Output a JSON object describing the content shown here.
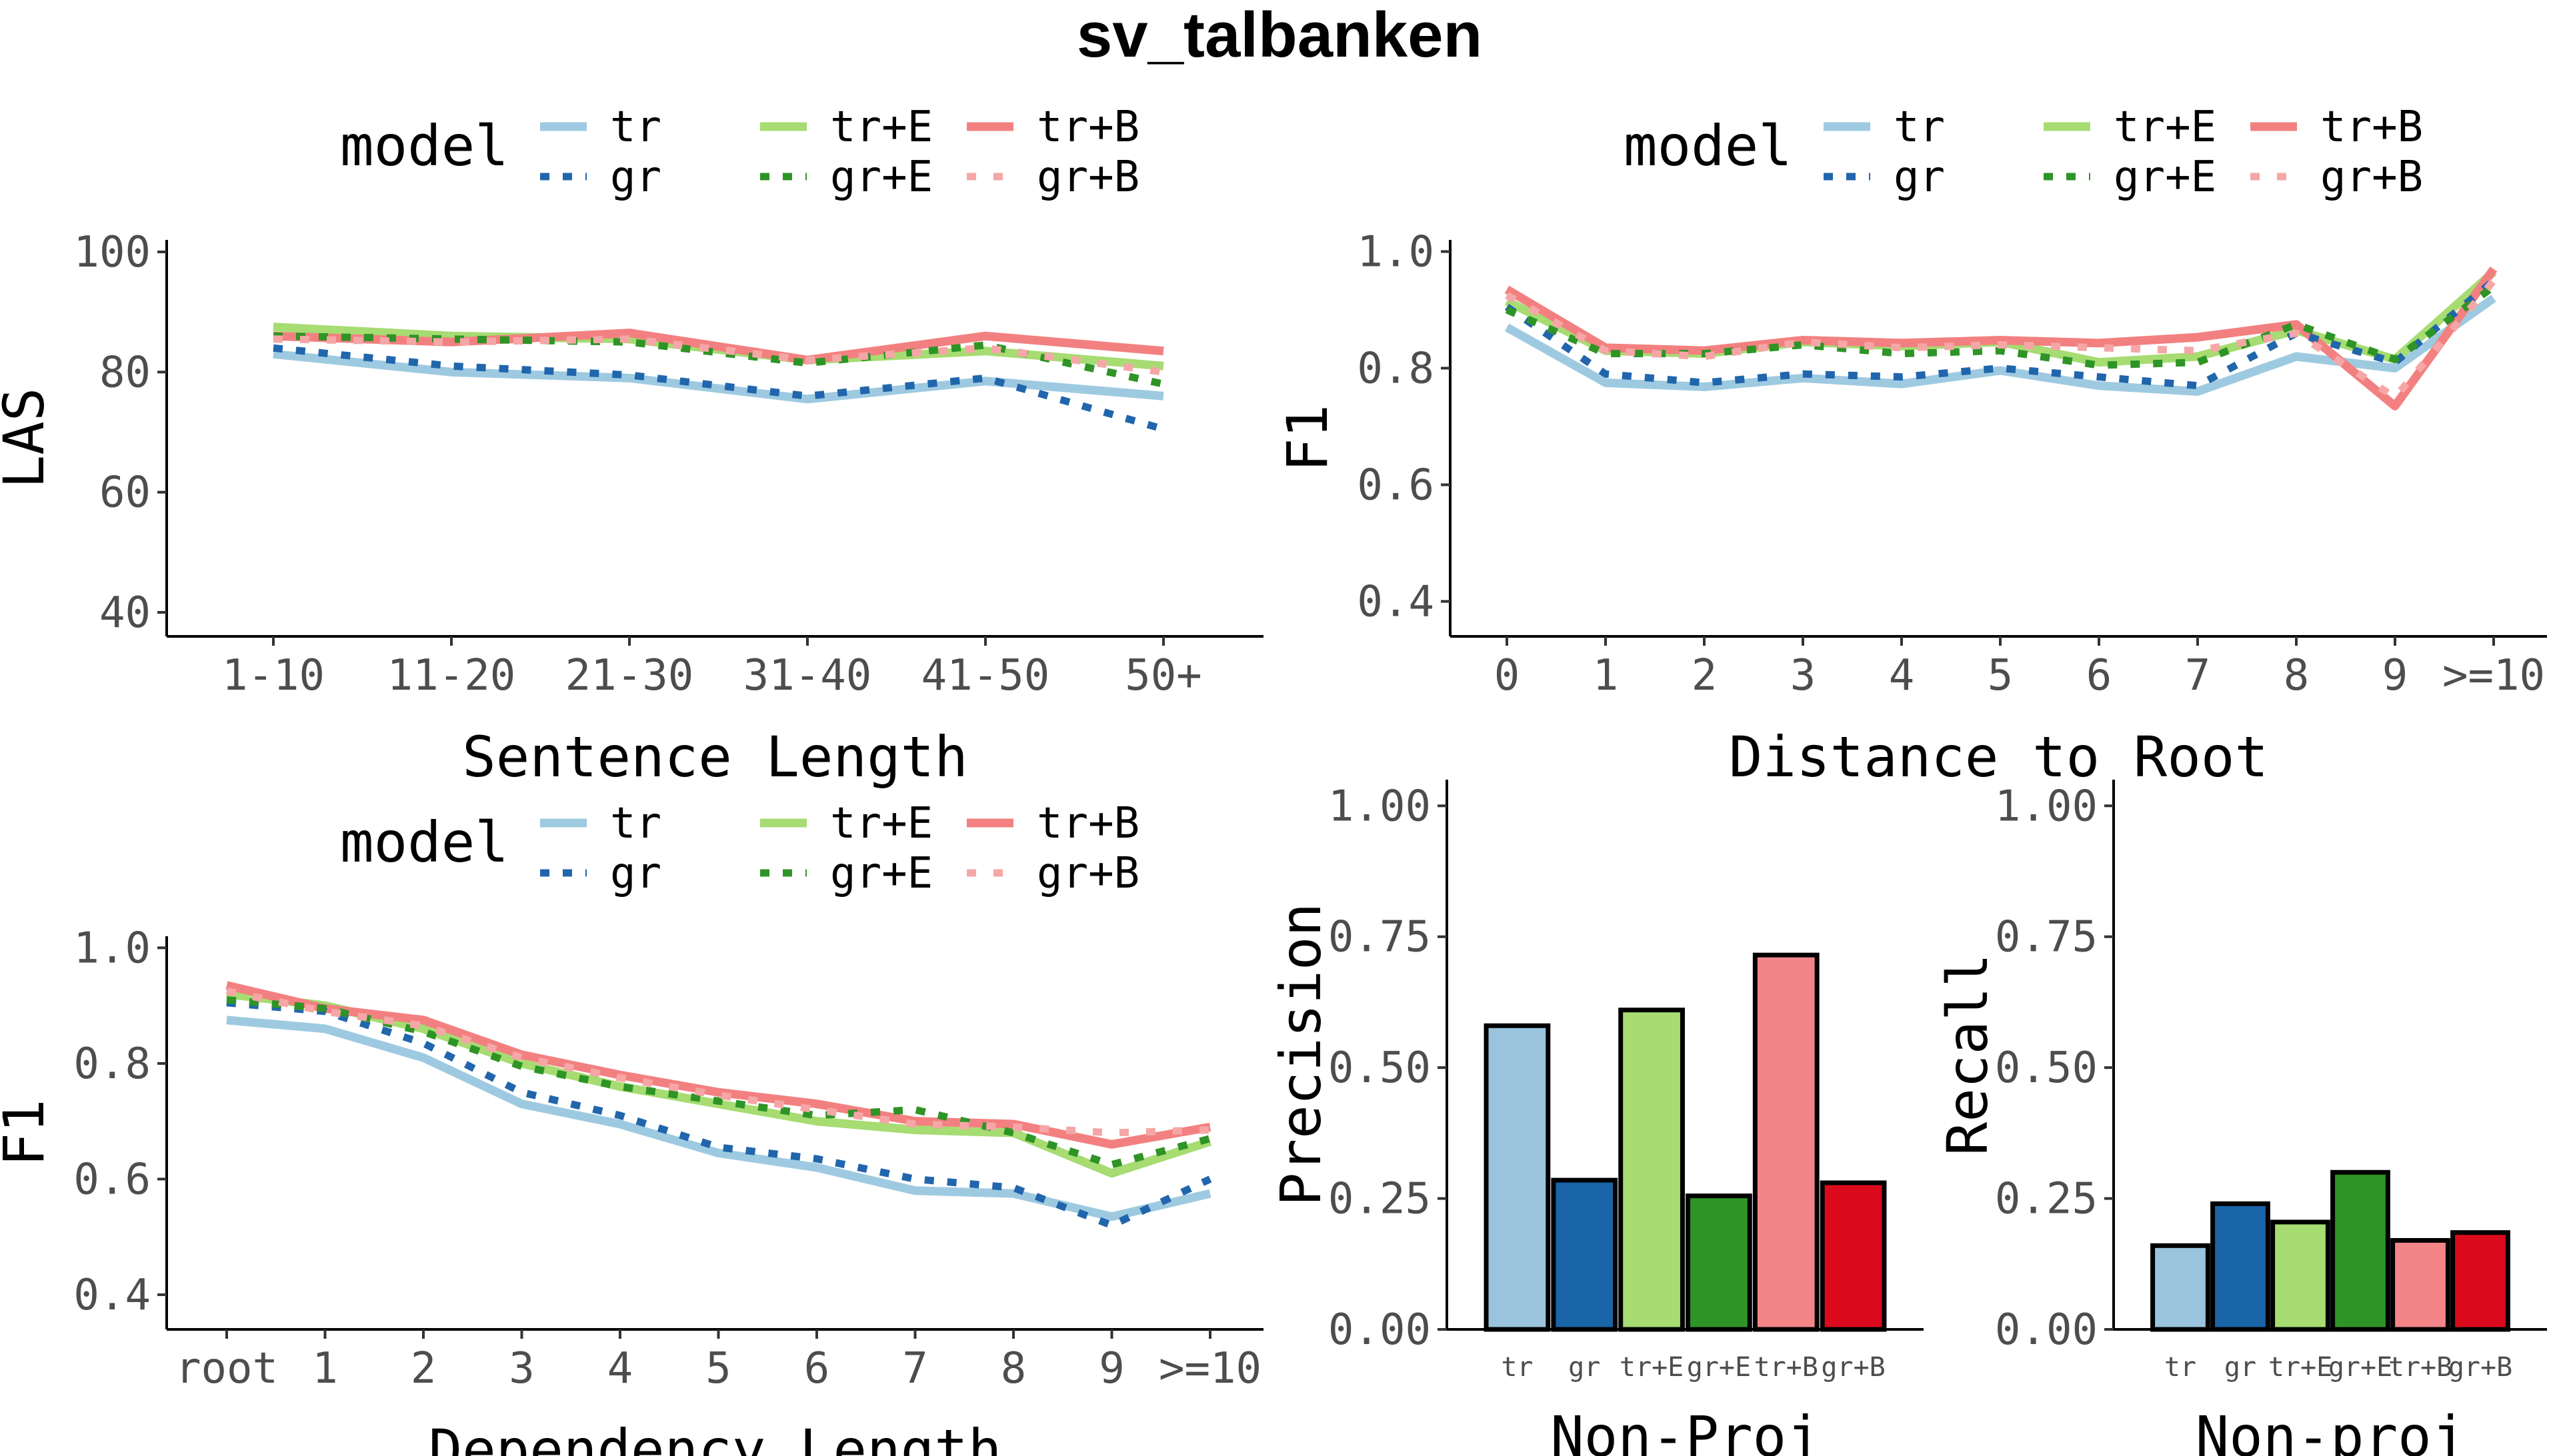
{
  "figure_title": "sv_talbanken",
  "colors": {
    "tr": "#9ecae1",
    "gr": "#2166ac",
    "tr+E": "#a6dc72",
    "gr+E": "#2e9426",
    "tr+B": "#f38080",
    "gr+B": "#f6a6a6"
  },
  "legend": {
    "title": "model",
    "entries": [
      {
        "key": "tr",
        "label": "tr"
      },
      {
        "key": "tr+E",
        "label": "tr+E"
      },
      {
        "key": "tr+B",
        "label": "tr+B"
      },
      {
        "key": "gr",
        "label": "gr"
      },
      {
        "key": "gr+E",
        "label": "gr+E"
      },
      {
        "key": "gr+B",
        "label": "gr+B"
      }
    ]
  },
  "chart_data": [
    {
      "id": "sentence-length",
      "type": "line",
      "xlabel": "Sentence Length",
      "ylabel": "LAS",
      "categories": [
        "1-10",
        "11-20",
        "21-30",
        "31-40",
        "41-50",
        "50+"
      ],
      "ylim": [
        36,
        102
      ],
      "yticks": [
        40,
        60,
        80,
        100
      ],
      "ytick_labels": [
        "40",
        "60",
        "80",
        "100"
      ],
      "series": [
        {
          "name": "tr",
          "values": [
            83,
            80,
            79,
            75.5,
            78.5,
            76
          ]
        },
        {
          "name": "gr",
          "values": [
            84,
            81,
            79.5,
            76,
            79,
            70.5
          ]
        },
        {
          "name": "tr+E",
          "values": [
            87.5,
            86,
            85.5,
            82,
            83.5,
            81
          ]
        },
        {
          "name": "gr+E",
          "values": [
            86,
            85.5,
            85,
            81.5,
            84.5,
            78
          ]
        },
        {
          "name": "tr+B",
          "values": [
            86,
            85,
            86.5,
            82,
            86,
            83.5
          ]
        },
        {
          "name": "gr+B",
          "values": [
            85.5,
            85,
            85.5,
            82,
            84,
            80
          ]
        }
      ]
    },
    {
      "id": "distance-to-root",
      "type": "line",
      "xlabel": "Distance to Root",
      "ylabel": "F1",
      "categories": [
        "0",
        "1",
        "2",
        "3",
        "4",
        "5",
        "6",
        "7",
        "8",
        "9",
        ">=10"
      ],
      "ylim": [
        0.34,
        1.02
      ],
      "yticks": [
        0.4,
        0.6,
        0.8,
        1.0
      ],
      "ytick_labels": [
        "0.4",
        "0.6",
        "0.8",
        "1.0"
      ],
      "series": [
        {
          "name": "tr",
          "values": [
            0.87,
            0.775,
            0.768,
            0.783,
            0.773,
            0.796,
            0.77,
            0.76,
            0.82,
            0.8,
            0.92
          ]
        },
        {
          "name": "gr",
          "values": [
            0.905,
            0.79,
            0.775,
            0.79,
            0.785,
            0.8,
            0.785,
            0.77,
            0.86,
            0.81,
            0.95
          ]
        },
        {
          "name": "tr+E",
          "values": [
            0.915,
            0.83,
            0.825,
            0.845,
            0.838,
            0.845,
            0.81,
            0.82,
            0.865,
            0.815,
            0.965
          ]
        },
        {
          "name": "gr+E",
          "values": [
            0.9,
            0.825,
            0.825,
            0.84,
            0.825,
            0.83,
            0.805,
            0.81,
            0.875,
            0.815,
            0.94
          ]
        },
        {
          "name": "tr+B",
          "values": [
            0.935,
            0.835,
            0.83,
            0.848,
            0.843,
            0.848,
            0.843,
            0.853,
            0.875,
            0.735,
            0.97
          ]
        },
        {
          "name": "gr+B",
          "values": [
            0.925,
            0.83,
            0.82,
            0.845,
            0.835,
            0.84,
            0.835,
            0.83,
            0.86,
            0.75,
            0.95
          ]
        }
      ]
    },
    {
      "id": "dependency-length",
      "type": "line",
      "xlabel": "Dependency Length",
      "ylabel": "F1",
      "categories": [
        "root",
        "1",
        "2",
        "3",
        "4",
        "5",
        "6",
        "7",
        "8",
        "9",
        ">=10"
      ],
      "ylim": [
        0.34,
        1.02
      ],
      "yticks": [
        0.4,
        0.6,
        0.8,
        1.0
      ],
      "ytick_labels": [
        "0.4",
        "0.6",
        "0.8",
        "1.0"
      ],
      "series": [
        {
          "name": "tr",
          "values": [
            0.875,
            0.86,
            0.81,
            0.73,
            0.695,
            0.645,
            0.62,
            0.58,
            0.575,
            0.535,
            0.575
          ]
        },
        {
          "name": "gr",
          "values": [
            0.905,
            0.89,
            0.835,
            0.75,
            0.71,
            0.655,
            0.635,
            0.6,
            0.585,
            0.52,
            0.6
          ]
        },
        {
          "name": "tr+E",
          "values": [
            0.92,
            0.9,
            0.86,
            0.8,
            0.76,
            0.73,
            0.7,
            0.685,
            0.68,
            0.61,
            0.665
          ]
        },
        {
          "name": "gr+E",
          "values": [
            0.91,
            0.895,
            0.855,
            0.795,
            0.76,
            0.735,
            0.71,
            0.72,
            0.68,
            0.625,
            0.67
          ]
        },
        {
          "name": "tr+B",
          "values": [
            0.935,
            0.895,
            0.875,
            0.815,
            0.78,
            0.75,
            0.73,
            0.7,
            0.695,
            0.66,
            0.69
          ]
        },
        {
          "name": "gr+B",
          "values": [
            0.925,
            0.89,
            0.865,
            0.81,
            0.775,
            0.745,
            0.72,
            0.695,
            0.69,
            0.68,
            0.685
          ]
        }
      ]
    },
    {
      "id": "nonproj-precision",
      "type": "bar",
      "xlabel": "Non-Proj",
      "ylabel": "Precision",
      "categories": [
        "tr",
        "gr",
        "tr+E",
        "gr+E",
        "tr+B",
        "gr+B"
      ],
      "values": [
        0.58,
        0.285,
        0.61,
        0.255,
        0.715,
        0.28
      ],
      "ylim": [
        0,
        1.05
      ],
      "yticks": [
        0,
        0.25,
        0.5,
        0.75,
        1.0
      ],
      "ytick_labels": [
        "0.00",
        "0.25",
        "0.50",
        "0.75",
        "1.00"
      ]
    },
    {
      "id": "nonproj-recall",
      "type": "bar",
      "xlabel": "Non-proj",
      "ylabel": "Recall",
      "categories": [
        "tr",
        "gr",
        "tr+E",
        "gr+E",
        "tr+B",
        "gr+B"
      ],
      "values": [
        0.16,
        0.24,
        0.205,
        0.3,
        0.17,
        0.185
      ],
      "ylim": [
        0,
        1.05
      ],
      "yticks": [
        0,
        0.25,
        0.5,
        0.75,
        1.0
      ],
      "ytick_labels": [
        "0.00",
        "0.25",
        "0.50",
        "0.75",
        "1.00"
      ]
    }
  ]
}
